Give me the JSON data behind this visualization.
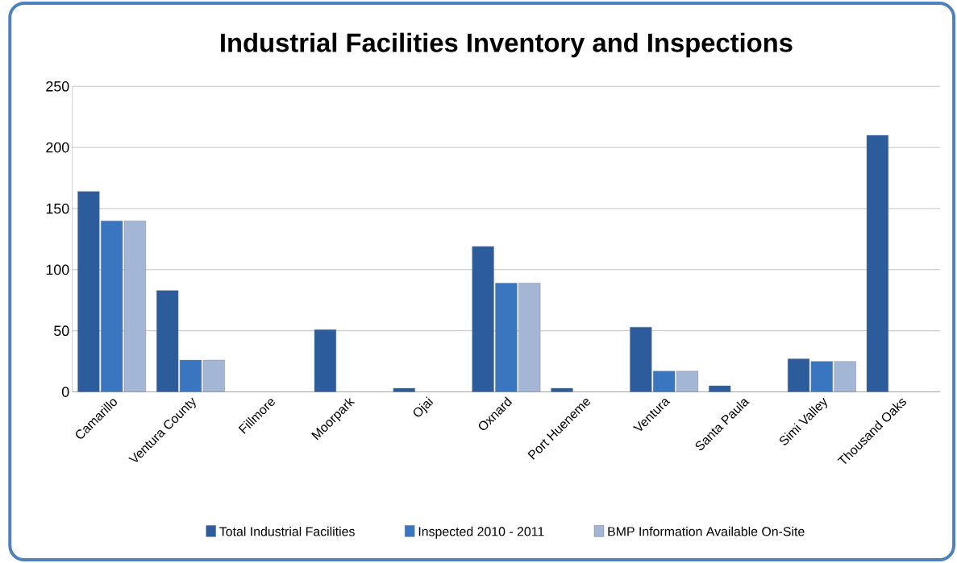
{
  "chart_data": {
    "type": "bar",
    "title": "Industrial Facilities Inventory and Inspections",
    "categories": [
      "Camarillo",
      "Ventura County",
      "Fillmore",
      "Moorpark",
      "Ojai",
      "Oxnard",
      "Port Hueneme",
      "Ventura",
      "Santa Paula",
      "Simi Valley",
      "Thousand Oaks"
    ],
    "series": [
      {
        "name": "Total Industrial  Facilities",
        "color": "#2c5c9c",
        "values": [
          164,
          83,
          null,
          51,
          3,
          119,
          3,
          53,
          5,
          27,
          210
        ]
      },
      {
        "name": "Inspected  2010 - 2011",
        "color": "#3a76bf",
        "values": [
          140,
          26,
          null,
          null,
          null,
          89,
          null,
          17,
          null,
          25,
          null
        ]
      },
      {
        "name": "BMP Information  Available On-Site",
        "color": "#a3b6d6",
        "values": [
          140,
          26,
          null,
          null,
          null,
          89,
          null,
          17,
          null,
          25,
          null
        ]
      }
    ],
    "ylim": [
      0,
      250
    ],
    "yticks": [
      0,
      50,
      100,
      150,
      200,
      250
    ],
    "grid": "y",
    "legend": "bottom"
  }
}
